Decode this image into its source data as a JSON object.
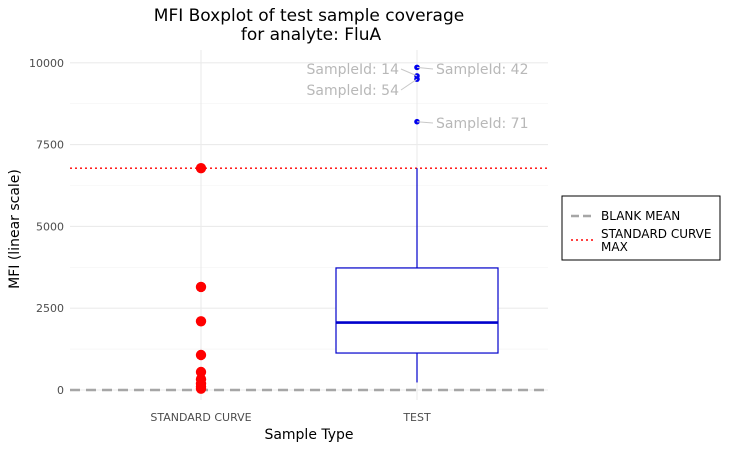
{
  "chart_data": {
    "type": "box",
    "title_lines": [
      "MFI Boxplot of test sample coverage",
      "for analyte: FluA"
    ],
    "xlabel": "Sample Type",
    "ylabel": "MFI (linear scale)",
    "categories": [
      "STANDARD CURVE",
      "TEST"
    ],
    "ylim": [
      -300,
      10300
    ],
    "yticks": [
      0,
      2500,
      5000,
      7500,
      10000
    ],
    "grid": true,
    "standard_curve_points": [
      6780,
      3150,
      2100,
      1070,
      550,
      330,
      190,
      100,
      40
    ],
    "test_box": {
      "whisker_low": 230,
      "q1": 1130,
      "median": 2060,
      "q3": 3730,
      "whisker_high": 6780
    },
    "test_outliers": [
      {
        "value": 9860,
        "label": "SampleId: 42"
      },
      {
        "value": 9600,
        "label": "SampleId: 14"
      },
      {
        "value": 9500,
        "label": "SampleId: 54"
      },
      {
        "value": 8200,
        "label": "SampleId: 71"
      }
    ],
    "reference_lines": [
      {
        "name": "BLANK MEAN",
        "value": 0,
        "style": "dashed",
        "color": "#a6a6a6"
      },
      {
        "name": "STANDARD CURVE MAX",
        "value": 6780,
        "style": "dotted",
        "color": "#ff0000"
      }
    ],
    "legend": {
      "placement": "right",
      "entries": [
        {
          "lines": [
            "BLANK MEAN"
          ],
          "color": "#a6a6a6",
          "style": "dashed"
        },
        {
          "lines": [
            "STANDARD CURVE",
            "MAX"
          ],
          "color": "#ff0000",
          "style": "dotted"
        }
      ]
    },
    "colors": {
      "box": "#0000cc",
      "outlier": "#0000ee",
      "standard_curve": "#ff0000"
    }
  }
}
